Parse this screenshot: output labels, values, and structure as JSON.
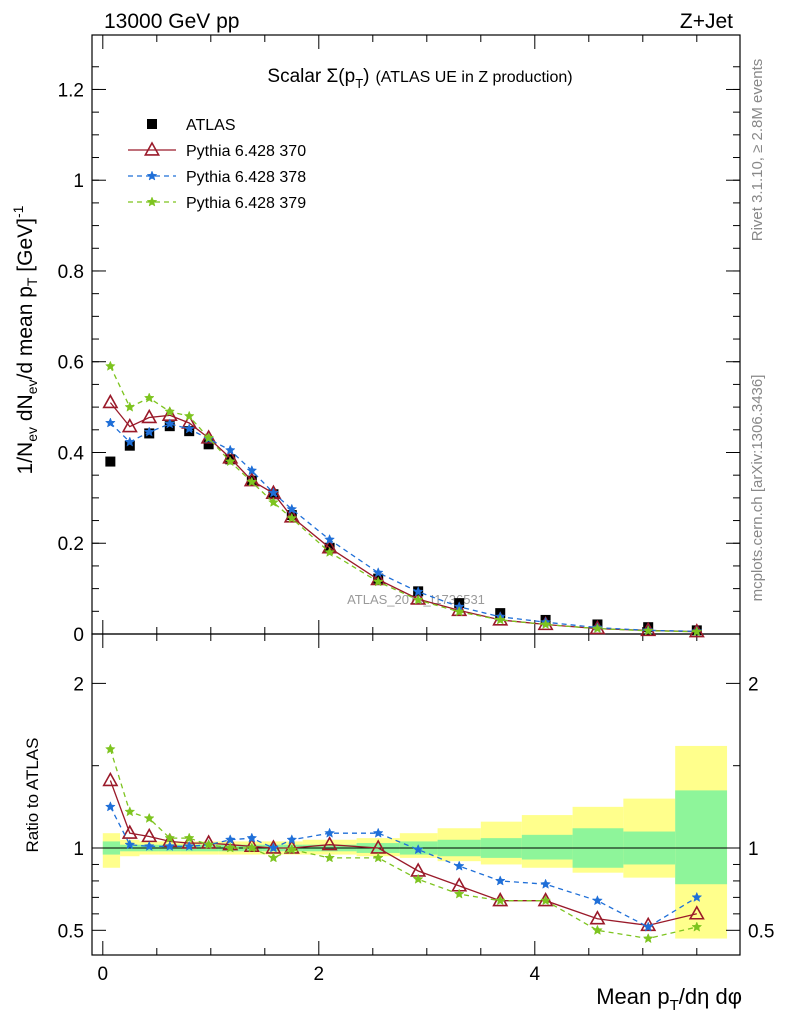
{
  "header": {
    "left": "13000 GeV pp",
    "right": "Z+Jet"
  },
  "side": {
    "rivet": "Rivet 3.1.10, ≥ 2.8M events",
    "mcplots": "mcplots.cern.ch [arXiv:1306.3436]"
  },
  "watermark": "ATLAS_2019_I1736531",
  "colors": {
    "atlas": "#000000",
    "p370": "#9a1a2a",
    "p378": "#1f6fd8",
    "p379": "#7dc41f",
    "band_inner": "#8ef59a",
    "band_outer": "#ffff8c"
  },
  "chart_data": [
    {
      "type": "scatter",
      "title": "Scalar Σ(p_T) (ATLAS UE in Z production)",
      "ylabel": "1/N_ev dN_ev/d mean p_T [GeV]^-1",
      "xlim": [
        -0.1,
        5.9
      ],
      "ylim": [
        0,
        1.32
      ],
      "yticks": [
        {
          "v": 0,
          "label": "0"
        },
        {
          "v": 0.2,
          "label": "0.2"
        },
        {
          "v": 0.4,
          "label": "0.4"
        },
        {
          "v": 0.6,
          "label": "0.6"
        },
        {
          "v": 0.8,
          "label": "0.8"
        },
        {
          "v": 1.0,
          "label": "1"
        },
        {
          "v": 1.2,
          "label": "1.2"
        }
      ],
      "x": [
        0.07,
        0.25,
        0.43,
        0.62,
        0.8,
        0.98,
        1.18,
        1.38,
        1.58,
        1.75,
        2.1,
        2.55,
        2.92,
        3.3,
        3.68,
        4.1,
        4.58,
        5.05,
        5.5
      ],
      "legend": [
        {
          "label": "ATLAS",
          "key": "atlas"
        },
        {
          "label": "Pythia 6.428 370",
          "key": "p370"
        },
        {
          "label": "Pythia 6.428 378",
          "key": "p378"
        },
        {
          "label": "Pythia 6.428 379",
          "key": "p379"
        }
      ],
      "series": [
        {
          "name": "ATLAS",
          "key": "atlas",
          "marker": "square",
          "values": [
            0.38,
            0.415,
            0.442,
            0.458,
            0.447,
            0.418,
            0.385,
            0.338,
            0.308,
            0.262,
            0.19,
            0.122,
            0.094,
            0.068,
            0.046,
            0.031,
            0.021,
            0.015,
            0.008
          ]
        },
        {
          "name": "Pythia 6.428 370",
          "key": "p370",
          "marker": "triangle",
          "dash": "",
          "values": [
            0.51,
            0.457,
            0.477,
            0.482,
            0.465,
            0.432,
            0.388,
            0.338,
            0.31,
            0.258,
            0.19,
            0.12,
            0.077,
            0.052,
            0.031,
            0.021,
            0.012,
            0.008,
            0.005
          ]
        },
        {
          "name": "Pythia 6.428 378",
          "key": "p378",
          "marker": "star",
          "dash": "5,4",
          "values": [
            0.465,
            0.423,
            0.445,
            0.463,
            0.452,
            0.43,
            0.405,
            0.36,
            0.311,
            0.275,
            0.208,
            0.135,
            0.093,
            0.06,
            0.038,
            0.026,
            0.014,
            0.008,
            0.006
          ]
        },
        {
          "name": "Pythia 6.428 379",
          "key": "p379",
          "marker": "star",
          "dash": "5,4",
          "values": [
            0.59,
            0.5,
            0.52,
            0.49,
            0.48,
            0.432,
            0.38,
            0.335,
            0.29,
            0.255,
            0.18,
            0.115,
            0.075,
            0.049,
            0.031,
            0.021,
            0.012,
            0.007,
            0.005
          ]
        }
      ]
    },
    {
      "type": "scatter",
      "ylabel": "Ratio to ATLAS",
      "xlabel": "Mean p_T/dη dφ",
      "xlim": [
        -0.1,
        5.9
      ],
      "ylim": [
        0.35,
        2.3
      ],
      "xticks": [
        {
          "v": 0,
          "label": "0"
        },
        {
          "v": 2,
          "label": "2"
        },
        {
          "v": 4,
          "label": "4"
        }
      ],
      "yticks": [
        {
          "v": 0.5,
          "label": "0.5"
        },
        {
          "v": 1,
          "label": "1"
        },
        {
          "v": 2,
          "label": "2"
        }
      ],
      "bands": {
        "edges": [
          0.0,
          0.16,
          0.34,
          0.52,
          0.72,
          0.9,
          1.07,
          1.28,
          1.48,
          1.67,
          1.85,
          2.35,
          2.75,
          3.1,
          3.5,
          3.88,
          4.35,
          4.82,
          5.3,
          5.78
        ],
        "inner": [
          [
            0.96,
            1.04
          ],
          [
            0.98,
            1.02
          ],
          [
            0.98,
            1.02
          ],
          [
            0.98,
            1.02
          ],
          [
            0.98,
            1.02
          ],
          [
            0.98,
            1.02
          ],
          [
            0.98,
            1.02
          ],
          [
            0.98,
            1.02
          ],
          [
            0.98,
            1.02
          ],
          [
            0.98,
            1.02
          ],
          [
            0.98,
            1.02
          ],
          [
            0.97,
            1.03
          ],
          [
            0.96,
            1.04
          ],
          [
            0.95,
            1.05
          ],
          [
            0.94,
            1.06
          ],
          [
            0.93,
            1.08
          ],
          [
            0.88,
            1.12
          ],
          [
            0.9,
            1.1
          ],
          [
            0.78,
            1.35
          ]
        ],
        "outer": [
          [
            0.88,
            1.09
          ],
          [
            0.95,
            1.05
          ],
          [
            0.96,
            1.04
          ],
          [
            0.96,
            1.04
          ],
          [
            0.96,
            1.04
          ],
          [
            0.96,
            1.04
          ],
          [
            0.96,
            1.04
          ],
          [
            0.96,
            1.04
          ],
          [
            0.96,
            1.04
          ],
          [
            0.96,
            1.04
          ],
          [
            0.96,
            1.05
          ],
          [
            0.95,
            1.06
          ],
          [
            0.94,
            1.09
          ],
          [
            0.92,
            1.12
          ],
          [
            0.9,
            1.16
          ],
          [
            0.88,
            1.2
          ],
          [
            0.85,
            1.25
          ],
          [
            0.82,
            1.3
          ],
          [
            0.45,
            1.62
          ]
        ]
      },
      "x": [
        0.07,
        0.25,
        0.43,
        0.62,
        0.8,
        0.98,
        1.18,
        1.38,
        1.58,
        1.75,
        2.1,
        2.55,
        2.92,
        3.3,
        3.68,
        4.1,
        4.58,
        5.05,
        5.5
      ],
      "series": [
        {
          "name": "Pythia 6.428 370",
          "key": "p370",
          "marker": "triangle",
          "dash": "",
          "values": [
            1.41,
            1.09,
            1.07,
            1.04,
            1.03,
            1.03,
            1.02,
            1.01,
            1.0,
            1.0,
            1.02,
            1.0,
            0.86,
            0.77,
            0.68,
            0.68,
            0.57,
            0.53,
            0.6
          ]
        },
        {
          "name": "Pythia 6.428 378",
          "key": "p378",
          "marker": "star",
          "dash": "5,4",
          "values": [
            1.25,
            1.02,
            1.01,
            1.01,
            1.01,
            1.02,
            1.05,
            1.06,
            1.0,
            1.05,
            1.09,
            1.09,
            0.99,
            0.89,
            0.8,
            0.78,
            0.68,
            0.52,
            0.7
          ]
        },
        {
          "name": "Pythia 6.428 379",
          "key": "p379",
          "marker": "star",
          "dash": "5,4",
          "values": [
            1.6,
            1.22,
            1.18,
            1.06,
            1.06,
            1.02,
            1.0,
            1.0,
            0.94,
            0.99,
            0.94,
            0.94,
            0.81,
            0.72,
            0.68,
            0.68,
            0.5,
            0.45,
            0.52
          ]
        }
      ]
    }
  ]
}
